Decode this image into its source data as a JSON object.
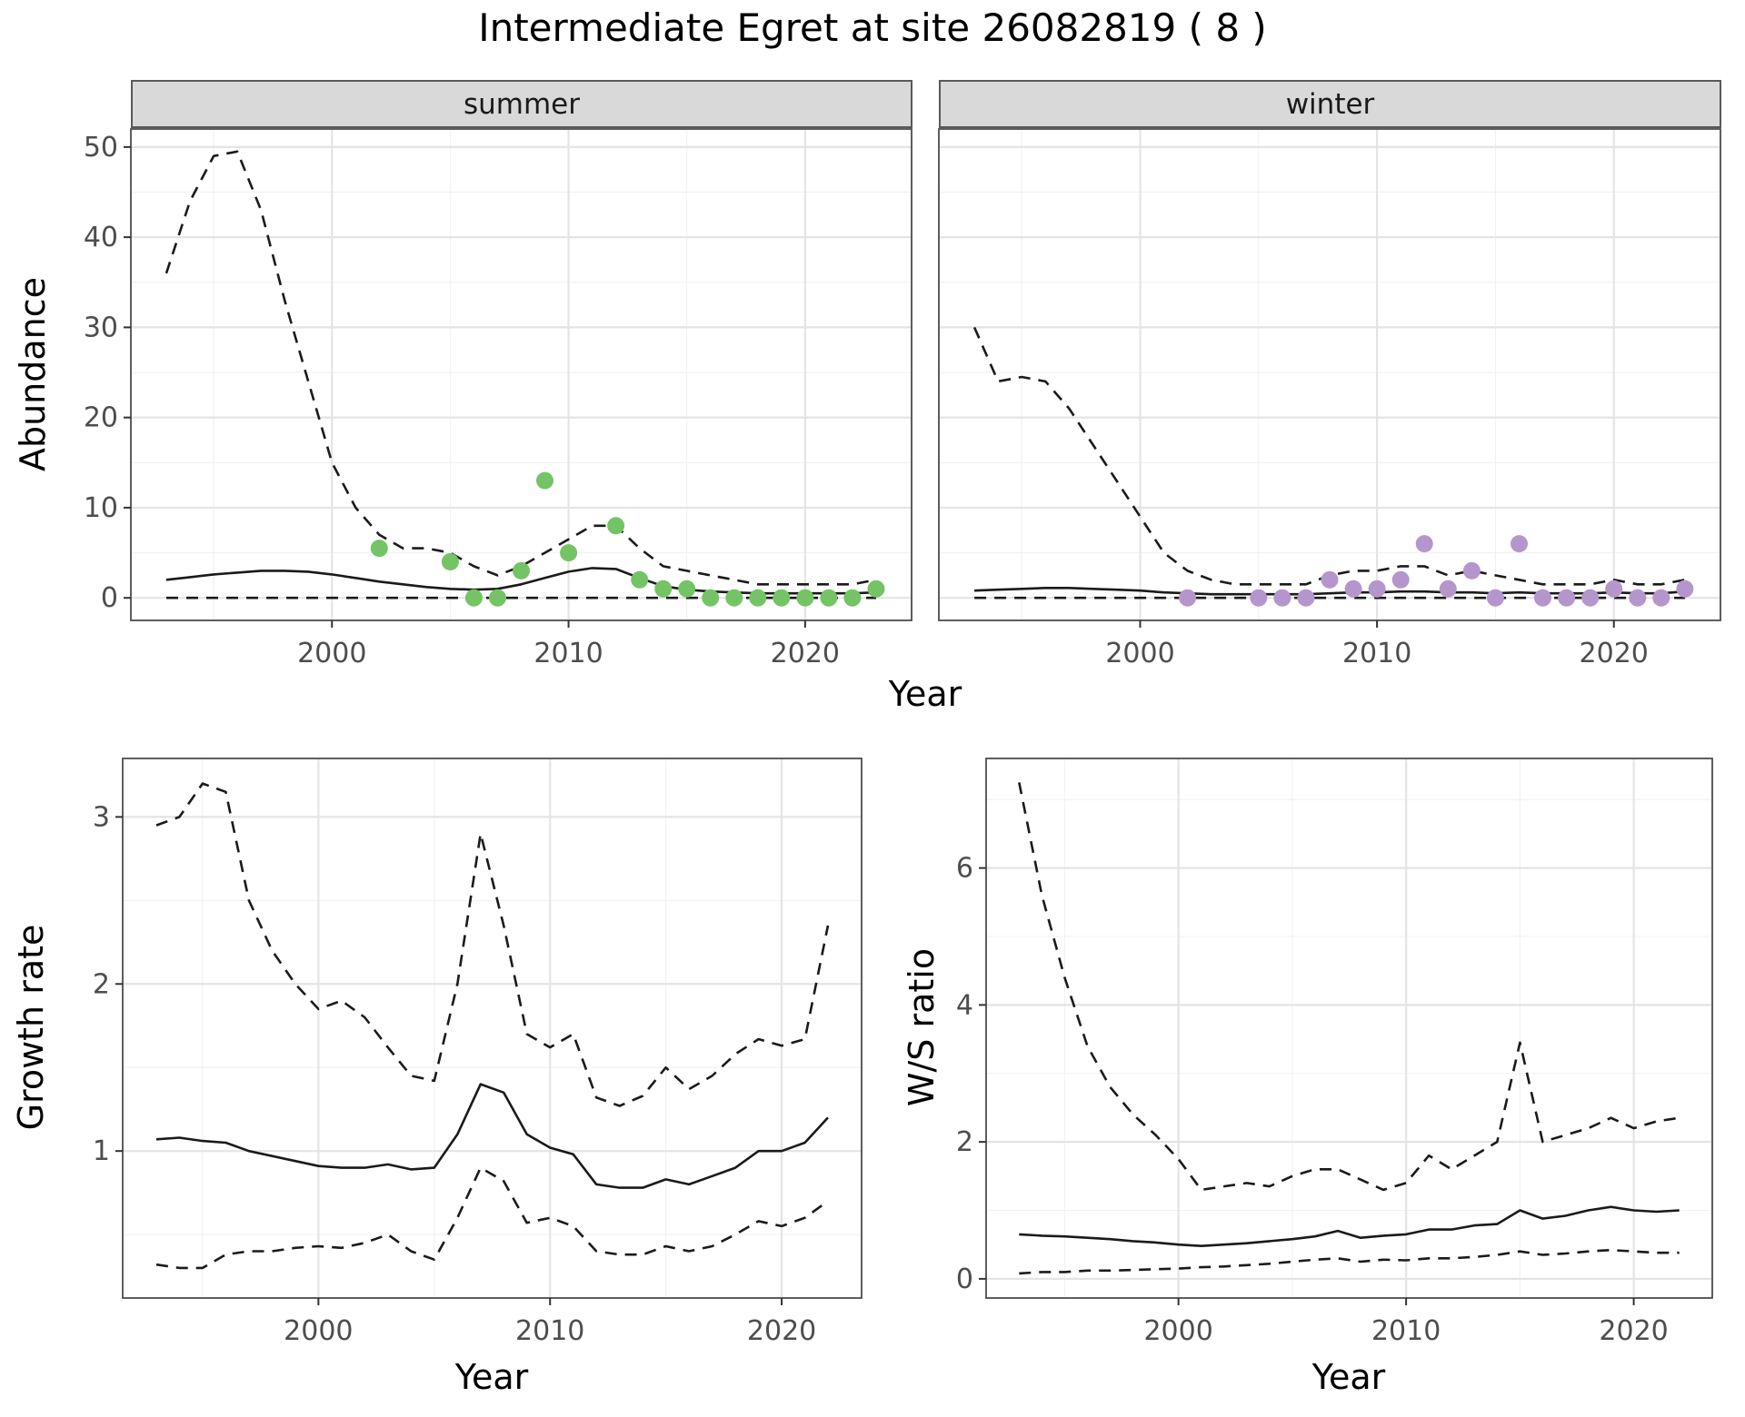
{
  "title": "Intermediate Egret at site 26082819 ( 8 )",
  "facets": [
    "summer",
    "winter"
  ],
  "labels": {
    "year": "Year",
    "abundance": "Abundance",
    "growth_rate": "Growth rate",
    "ws_ratio": "W/S ratio"
  },
  "colors": {
    "summer_point": "#74c465",
    "winter_point": "#b596cc",
    "line": "#1a1a1a",
    "panel_border": "#4d4d4d",
    "tick": "#333333",
    "tick_label": "#4d4d4d",
    "grid_major": "#e4e4e4",
    "grid_minor": "#f1f1f1",
    "strip_bg": "#d9d9d9"
  },
  "chart_data": [
    {
      "id": "abundance-summer",
      "type": "line",
      "facet": "summer",
      "xlabel": "Year",
      "ylabel": "Abundance",
      "xlim": [
        1991.5,
        2024.5
      ],
      "ylim": [
        -2.5,
        52
      ],
      "xticks": [
        2000,
        2010,
        2020
      ],
      "yticks": [
        0,
        10,
        20,
        30,
        40,
        50
      ],
      "x": [
        1993,
        1994,
        1995,
        1996,
        1997,
        1998,
        1999,
        2000,
        2001,
        2002,
        2003,
        2004,
        2005,
        2006,
        2007,
        2008,
        2009,
        2010,
        2011,
        2012,
        2013,
        2014,
        2015,
        2016,
        2017,
        2018,
        2019,
        2020,
        2021,
        2022,
        2023
      ],
      "series": [
        {
          "name": "upper-ci",
          "style": "dashed",
          "values": [
            36,
            44,
            49,
            49.5,
            43,
            33,
            24,
            15,
            10,
            7,
            5.5,
            5.5,
            5,
            3.5,
            2.5,
            3.5,
            5,
            6.5,
            8,
            8,
            5.5,
            3.5,
            3,
            2.5,
            2,
            1.5,
            1.5,
            1.5,
            1.5,
            1.5,
            2
          ]
        },
        {
          "name": "estimate",
          "style": "solid",
          "values": [
            2,
            2.3,
            2.6,
            2.8,
            3,
            3,
            2.9,
            2.6,
            2.2,
            1.8,
            1.5,
            1.2,
            1,
            0.9,
            1,
            1.5,
            2.2,
            2.9,
            3.3,
            3.2,
            2.2,
            1.3,
            0.9,
            0.7,
            0.6,
            0.5,
            0.5,
            0.5,
            0.5,
            0.5,
            0.6
          ]
        },
        {
          "name": "lower-ci",
          "style": "dashed",
          "values": [
            0,
            0,
            0,
            0,
            0,
            0,
            0,
            0,
            0,
            0,
            0,
            0,
            0,
            0,
            0,
            0,
            0,
            0,
            0,
            0,
            0,
            0,
            0,
            0,
            0,
            0,
            0,
            0,
            0,
            0,
            0
          ]
        }
      ],
      "points": {
        "name": "observed-summer",
        "color_key": "summer_point",
        "x": [
          2002,
          2005,
          2006,
          2007,
          2008,
          2009,
          2010,
          2012,
          2013,
          2014,
          2015,
          2016,
          2017,
          2018,
          2019,
          2020,
          2021,
          2022,
          2023
        ],
        "y": [
          5.5,
          4,
          0,
          0,
          3,
          13,
          5,
          8,
          2,
          1,
          1,
          0,
          0,
          0,
          0,
          0,
          0,
          0,
          1
        ]
      }
    },
    {
      "id": "abundance-winter",
      "type": "line",
      "facet": "winter",
      "xlabel": "Year",
      "ylabel": "Abundance",
      "xlim": [
        1991.5,
        2024.5
      ],
      "ylim": [
        -2.5,
        52
      ],
      "xticks": [
        2000,
        2010,
        2020
      ],
      "yticks": [
        0,
        10,
        20,
        30,
        40,
        50
      ],
      "x": [
        1993,
        1994,
        1995,
        1996,
        1997,
        1998,
        1999,
        2000,
        2001,
        2002,
        2003,
        2004,
        2005,
        2006,
        2007,
        2008,
        2009,
        2010,
        2011,
        2012,
        2013,
        2014,
        2015,
        2016,
        2017,
        2018,
        2019,
        2020,
        2021,
        2022,
        2023
      ],
      "series": [
        {
          "name": "upper-ci",
          "style": "dashed",
          "values": [
            30,
            24,
            24.5,
            24,
            21,
            17,
            13,
            9,
            5,
            3,
            2,
            1.5,
            1.5,
            1.5,
            1.5,
            2.5,
            3,
            3,
            3.5,
            3.5,
            2.5,
            3,
            2.5,
            2,
            1.5,
            1.5,
            1.5,
            2,
            1.5,
            1.5,
            2
          ]
        },
        {
          "name": "estimate",
          "style": "solid",
          "values": [
            0.8,
            0.9,
            1,
            1.1,
            1.1,
            1,
            0.9,
            0.8,
            0.6,
            0.5,
            0.4,
            0.4,
            0.4,
            0.4,
            0.4,
            0.5,
            0.6,
            0.6,
            0.7,
            0.7,
            0.6,
            0.6,
            0.5,
            0.6,
            0.5,
            0.5,
            0.5,
            0.6,
            0.5,
            0.5,
            0.7
          ]
        },
        {
          "name": "lower-ci",
          "style": "dashed",
          "values": [
            0,
            0,
            0,
            0,
            0,
            0,
            0,
            0,
            0,
            0,
            0,
            0,
            0,
            0,
            0,
            0,
            0,
            0,
            0,
            0,
            0,
            0,
            0,
            0,
            0,
            0,
            0,
            0,
            0,
            0,
            0
          ]
        }
      ],
      "points": {
        "name": "observed-winter",
        "color_key": "winter_point",
        "x": [
          2002,
          2005,
          2006,
          2007,
          2008,
          2009,
          2010,
          2011,
          2012,
          2013,
          2014,
          2015,
          2016,
          2017,
          2018,
          2019,
          2020,
          2021,
          2022,
          2023
        ],
        "y": [
          0,
          0,
          0,
          0,
          2,
          1,
          1,
          2,
          6,
          1,
          3,
          0,
          6,
          0,
          0,
          0,
          1,
          0,
          0,
          1
        ]
      }
    },
    {
      "id": "growth-rate",
      "type": "line",
      "xlabel": "Year",
      "ylabel": "Growth rate",
      "xlim": [
        1991.55,
        2023.45
      ],
      "ylim": [
        0.12,
        3.35
      ],
      "xticks": [
        2000,
        2010,
        2020
      ],
      "yticks": [
        1,
        2,
        3
      ],
      "x": [
        1993,
        1994,
        1995,
        1996,
        1997,
        1998,
        1999,
        2000,
        2001,
        2002,
        2003,
        2004,
        2005,
        2006,
        2007,
        2008,
        2009,
        2010,
        2011,
        2012,
        2013,
        2014,
        2015,
        2016,
        2017,
        2018,
        2019,
        2020,
        2021,
        2022
      ],
      "series": [
        {
          "name": "upper-ci",
          "style": "dashed",
          "values": [
            2.95,
            3,
            3.2,
            3.15,
            2.5,
            2.2,
            2,
            1.85,
            1.9,
            1.8,
            1.62,
            1.45,
            1.42,
            2,
            2.9,
            2.35,
            1.7,
            1.62,
            1.7,
            1.32,
            1.27,
            1.33,
            1.5,
            1.37,
            1.45,
            1.58,
            1.67,
            1.63,
            1.67,
            2.35
          ]
        },
        {
          "name": "estimate",
          "style": "solid",
          "values": [
            1.07,
            1.08,
            1.06,
            1.05,
            1,
            0.97,
            0.94,
            0.91,
            0.9,
            0.9,
            0.92,
            0.89,
            0.9,
            1.1,
            1.4,
            1.35,
            1.1,
            1.02,
            0.98,
            0.8,
            0.78,
            0.78,
            0.83,
            0.8,
            0.85,
            0.9,
            1,
            1,
            1.05,
            1.2
          ]
        },
        {
          "name": "lower-ci",
          "style": "dashed",
          "values": [
            0.32,
            0.3,
            0.3,
            0.38,
            0.4,
            0.4,
            0.42,
            0.43,
            0.42,
            0.45,
            0.5,
            0.4,
            0.35,
            0.6,
            0.9,
            0.82,
            0.57,
            0.6,
            0.55,
            0.4,
            0.38,
            0.38,
            0.43,
            0.4,
            0.43,
            0.5,
            0.58,
            0.55,
            0.6,
            0.7
          ]
        }
      ]
    },
    {
      "id": "ws-ratio",
      "type": "line",
      "xlabel": "Year",
      "ylabel": "W/S ratio",
      "xlim": [
        1991.55,
        2023.45
      ],
      "ylim": [
        -0.28,
        7.6
      ],
      "xticks": [
        2000,
        2010,
        2020
      ],
      "yticks": [
        0,
        2,
        4,
        6
      ],
      "x": [
        1993,
        1994,
        1995,
        1996,
        1997,
        1998,
        1999,
        2000,
        2001,
        2002,
        2003,
        2004,
        2005,
        2006,
        2007,
        2008,
        2009,
        2010,
        2011,
        2012,
        2013,
        2014,
        2015,
        2016,
        2017,
        2018,
        2019,
        2020,
        2021,
        2022
      ],
      "series": [
        {
          "name": "upper-ci",
          "style": "dashed",
          "values": [
            7.25,
            5.6,
            4.4,
            3.4,
            2.8,
            2.4,
            2.1,
            1.75,
            1.3,
            1.35,
            1.4,
            1.35,
            1.5,
            1.6,
            1.6,
            1.45,
            1.3,
            1.4,
            1.8,
            1.6,
            1.8,
            2,
            3.45,
            2,
            2.1,
            2.2,
            2.35,
            2.2,
            2.3,
            2.35
          ]
        },
        {
          "name": "estimate",
          "style": "solid",
          "values": [
            0.65,
            0.63,
            0.62,
            0.6,
            0.58,
            0.55,
            0.53,
            0.5,
            0.48,
            0.5,
            0.52,
            0.55,
            0.58,
            0.62,
            0.7,
            0.6,
            0.63,
            0.65,
            0.72,
            0.72,
            0.78,
            0.8,
            1,
            0.88,
            0.92,
            1,
            1.05,
            1,
            0.98,
            1
          ]
        },
        {
          "name": "lower-ci",
          "style": "dashed",
          "values": [
            0.08,
            0.1,
            0.1,
            0.12,
            0.12,
            0.13,
            0.14,
            0.15,
            0.17,
            0.18,
            0.2,
            0.22,
            0.25,
            0.28,
            0.3,
            0.25,
            0.28,
            0.27,
            0.3,
            0.3,
            0.32,
            0.35,
            0.4,
            0.35,
            0.37,
            0.4,
            0.42,
            0.4,
            0.38,
            0.38
          ]
        }
      ]
    }
  ]
}
